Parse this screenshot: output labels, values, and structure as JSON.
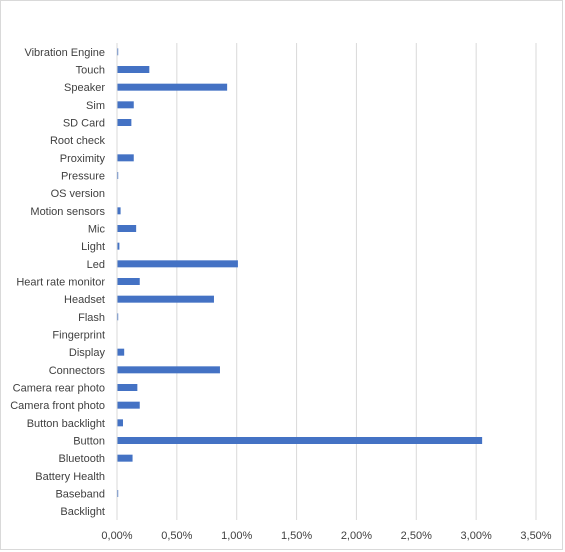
{
  "chart_data": {
    "type": "bar",
    "orientation": "horizontal",
    "title": "",
    "xlabel": "",
    "ylabel": "",
    "xlim": [
      0,
      0.035
    ],
    "x_ticks": [
      "0,00%",
      "0,50%",
      "1,00%",
      "1,50%",
      "2,00%",
      "2,50%",
      "3,00%",
      "3,50%"
    ],
    "grid": "vertical",
    "legend": "none",
    "bar_color": "#4472c4",
    "categories": [
      "Vibration Engine",
      "Touch",
      "Speaker",
      "Sim",
      "SD Card",
      "Root check",
      "Proximity",
      "Pressure",
      "OS version",
      "Motion sensors",
      "Mic",
      "Light",
      "Led",
      "Heart rate monitor",
      "Headset",
      "Flash",
      "Fingerprint",
      "Display",
      "Connectors",
      "Camera rear photo",
      "Camera front photo",
      "Button backlight",
      "Button",
      "Bluetooth",
      "Battery Health",
      "Baseband",
      "Backlight"
    ],
    "values": [
      0.0001,
      0.0027,
      0.0092,
      0.0014,
      0.0012,
      0.0,
      0.0014,
      0.0001,
      0.0,
      0.0003,
      0.0016,
      0.0002,
      0.0101,
      0.0019,
      0.0081,
      0.0001,
      0.0,
      0.0006,
      0.0086,
      0.0017,
      0.0019,
      0.0005,
      0.0305,
      0.0013,
      0.0,
      0.0001,
      0.0
    ]
  }
}
